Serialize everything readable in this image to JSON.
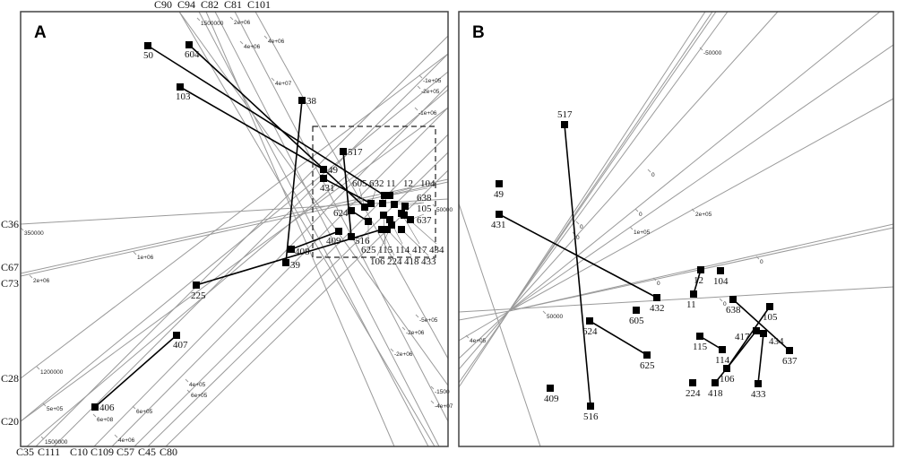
{
  "chart_data": [
    {
      "type": "scatter",
      "panel_label": "A",
      "axis_names": [
        "C90",
        "C94",
        "C82",
        "C81",
        "C101",
        "C35",
        "C111",
        "C10",
        "C109",
        "C57",
        "C45",
        "C80",
        "C36",
        "C67",
        "C73",
        "C28",
        "C20"
      ],
      "tick_labels": [
        "1500000",
        "2e+06",
        "4e+06",
        "4e+06",
        "4e+07",
        "-1e+05",
        "-2e+05",
        "-1e+06",
        "350000",
        "1e+06",
        "2e+06",
        "50000",
        "-5e+05",
        "-2e+06",
        "-2e+06",
        "1200000",
        "4e+05",
        "6e+05",
        "5e+05",
        "6e+08",
        "6e+05",
        "1500000",
        "4e+06",
        "-1500",
        "-4e+07"
      ],
      "points": [
        "50",
        "604",
        "103",
        "38",
        "517",
        "49",
        "431",
        "624",
        "409",
        "516",
        "408",
        "39",
        "225",
        "407",
        "406",
        "104",
        "12",
        "632",
        "605",
        "11",
        "638",
        "105",
        "637",
        "625",
        "115",
        "114",
        "417",
        "434",
        "106",
        "224",
        "418",
        "433"
      ],
      "connections": [
        [
          "50",
          "12"
        ],
        [
          "604",
          "605"
        ],
        [
          "103",
          "49"
        ],
        [
          "431",
          "632"
        ],
        [
          "38",
          "39"
        ],
        [
          "408",
          "409"
        ],
        [
          "225",
          "224"
        ],
        [
          "407",
          "406"
        ],
        [
          "517",
          "516"
        ],
        [
          "624",
          "625"
        ]
      ],
      "zoom_region": true
    },
    {
      "type": "scatter",
      "panel_label": "B",
      "tick_labels": [
        "-50000",
        "0",
        "0",
        "0",
        "0",
        "1e+05",
        "2e+05",
        "0",
        "0",
        "0",
        "50000",
        "4e+05"
      ],
      "points": [
        "517",
        "516",
        "49",
        "431",
        "432",
        "12",
        "104",
        "11",
        "638",
        "105",
        "605",
        "624",
        "625",
        "115",
        "114",
        "417",
        "434",
        "637",
        "106",
        "224",
        "418",
        "433",
        "409"
      ],
      "connections": [
        [
          "517",
          "516"
        ],
        [
          "431",
          "432"
        ],
        [
          "12",
          "11"
        ],
        [
          "624",
          "625"
        ],
        [
          "115",
          "114"
        ],
        [
          "638",
          "637"
        ],
        [
          "105",
          "106"
        ],
        [
          "417",
          "106"
        ],
        [
          "106",
          "418"
        ],
        [
          "434",
          "433"
        ]
      ]
    }
  ]
}
